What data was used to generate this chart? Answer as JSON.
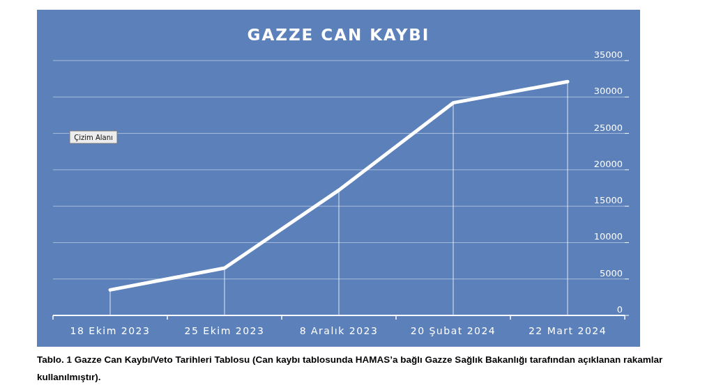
{
  "chart_data": {
    "type": "line",
    "title": "GAZZE CAN KAYBI",
    "categories": [
      "18 Ekim 2023",
      "25 Ekim 2023",
      "8 Aralık 2023",
      "20 Şubat 2024",
      "22 Mart 2024"
    ],
    "series": [
      {
        "color": "#ffffff",
        "values": [
          3500,
          6500,
          17200,
          29200,
          32100
        ]
      },
      {
        "type": "bar",
        "color": "#ffffff",
        "values": [
          3500,
          6500,
          17200,
          29200,
          32100
        ]
      }
    ],
    "ylim": [
      0,
      35000
    ],
    "yticks": [
      0,
      5000,
      10000,
      15000,
      20000,
      25000,
      30000,
      35000
    ],
    "grid": "y",
    "marker": "none",
    "line_style": "solid",
    "annotations": [
      "Çizim Alanı",
      "Tablo. 1 Gazze Can Kaybı/Veto Tarihleri Tablosu (Can kaybı tablosunda HAMAS’a bağlı Gazze Sağlık Bakanlığı tarafından açıklanan rakamlar kullanılmıştır)."
    ]
  }
}
